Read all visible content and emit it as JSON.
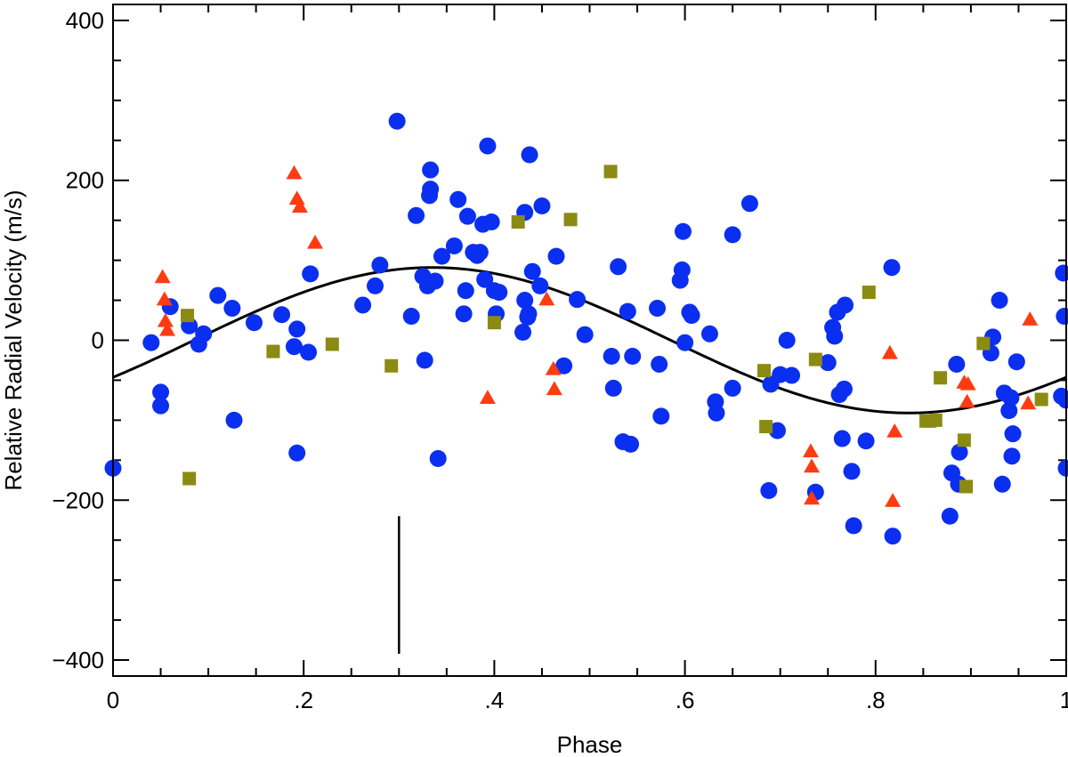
{
  "chart_data": {
    "type": "scatter",
    "title": "",
    "xlabel": "Phase",
    "ylabel": "Relative Radial Velocity (m/s)",
    "xlim": [
      0,
      1
    ],
    "ylim": [
      -420,
      420
    ],
    "x_tick_labels": [
      {
        "value": 0,
        "label": "0"
      },
      {
        "value": 0.2,
        "label": ".2"
      },
      {
        "value": 0.4,
        "label": ".4"
      },
      {
        "value": 0.6,
        "label": ".6"
      },
      {
        "value": 0.8,
        "label": ".8"
      },
      {
        "value": 1,
        "label": "1"
      }
    ],
    "y_tick_labels": [
      {
        "value": 400,
        "label": "400"
      },
      {
        "value": 200,
        "label": "200"
      },
      {
        "value": 0,
        "label": "0"
      },
      {
        "value": -200,
        "label": "−200"
      },
      {
        "value": -400,
        "label": "−400"
      }
    ],
    "grid": false,
    "legend": "none",
    "series": [
      {
        "marker": "circle",
        "color": "#0a2ff0",
        "points": [
          [
            0.0,
            -160
          ],
          [
            0.04,
            -3
          ],
          [
            0.05,
            -65
          ],
          [
            0.05,
            -82
          ],
          [
            0.06,
            42
          ],
          [
            0.08,
            18
          ],
          [
            0.09,
            -5
          ],
          [
            0.095,
            8
          ],
          [
            0.11,
            56
          ],
          [
            0.125,
            40
          ],
          [
            0.127,
            -100
          ],
          [
            0.148,
            22
          ],
          [
            0.177,
            32
          ],
          [
            0.19,
            -8
          ],
          [
            0.193,
            14
          ],
          [
            0.193,
            -141
          ],
          [
            0.205,
            -15
          ],
          [
            0.207,
            83
          ],
          [
            0.262,
            44
          ],
          [
            0.275,
            68
          ],
          [
            0.28,
            94
          ],
          [
            0.298,
            274
          ],
          [
            0.313,
            30
          ],
          [
            0.318,
            156
          ],
          [
            0.325,
            80
          ],
          [
            0.327,
            -25
          ],
          [
            0.33,
            68
          ],
          [
            0.332,
            181
          ],
          [
            0.333,
            189
          ],
          [
            0.333,
            213
          ],
          [
            0.338,
            74
          ],
          [
            0.341,
            -148
          ],
          [
            0.345,
            105
          ],
          [
            0.358,
            118
          ],
          [
            0.362,
            176
          ],
          [
            0.368,
            33
          ],
          [
            0.37,
            62
          ],
          [
            0.372,
            155
          ],
          [
            0.378,
            110
          ],
          [
            0.382,
            106
          ],
          [
            0.385,
            110
          ],
          [
            0.388,
            145
          ],
          [
            0.39,
            76
          ],
          [
            0.393,
            243
          ],
          [
            0.397,
            148
          ],
          [
            0.4,
            62
          ],
          [
            0.402,
            33
          ],
          [
            0.405,
            60
          ],
          [
            0.43,
            10
          ],
          [
            0.432,
            50
          ],
          [
            0.432,
            160
          ],
          [
            0.435,
            29
          ],
          [
            0.436,
            33
          ],
          [
            0.437,
            232
          ],
          [
            0.44,
            86
          ],
          [
            0.448,
            68
          ],
          [
            0.45,
            168
          ],
          [
            0.465,
            105
          ],
          [
            0.473,
            -32
          ],
          [
            0.487,
            51
          ],
          [
            0.495,
            7
          ],
          [
            0.523,
            -20
          ],
          [
            0.525,
            -60
          ],
          [
            0.53,
            92
          ],
          [
            0.535,
            -127
          ],
          [
            0.54,
            36
          ],
          [
            0.543,
            -130
          ],
          [
            0.545,
            -20
          ],
          [
            0.573,
            -30
          ],
          [
            0.575,
            -95
          ],
          [
            0.571,
            40
          ],
          [
            0.595,
            75
          ],
          [
            0.597,
            88
          ],
          [
            0.598,
            136
          ],
          [
            0.6,
            -3
          ],
          [
            0.605,
            35
          ],
          [
            0.607,
            31
          ],
          [
            0.626,
            8
          ],
          [
            0.632,
            -77
          ],
          [
            0.633,
            -91
          ],
          [
            0.65,
            -60
          ],
          [
            0.65,
            132
          ],
          [
            0.668,
            171
          ],
          [
            0.688,
            -188
          ],
          [
            0.69,
            -55
          ],
          [
            0.697,
            -113
          ],
          [
            0.7,
            -43
          ],
          [
            0.707,
            0
          ],
          [
            0.712,
            -44
          ],
          [
            0.737,
            -190
          ],
          [
            0.75,
            -28
          ],
          [
            0.755,
            16
          ],
          [
            0.757,
            5
          ],
          [
            0.76,
            35
          ],
          [
            0.762,
            -68
          ],
          [
            0.765,
            -123
          ],
          [
            0.767,
            -61
          ],
          [
            0.768,
            44
          ],
          [
            0.775,
            -164
          ],
          [
            0.777,
            -232
          ],
          [
            0.79,
            -126
          ],
          [
            0.817,
            91
          ],
          [
            0.818,
            -245
          ],
          [
            0.878,
            -220
          ],
          [
            0.88,
            -166
          ],
          [
            0.885,
            -30
          ],
          [
            0.887,
            -180
          ],
          [
            0.888,
            -140
          ],
          [
            0.921,
            -16
          ],
          [
            0.923,
            4
          ],
          [
            0.93,
            50
          ],
          [
            0.933,
            -180
          ],
          [
            0.935,
            -66
          ],
          [
            0.94,
            -88
          ],
          [
            0.942,
            -72
          ],
          [
            0.943,
            -145
          ],
          [
            0.944,
            -117
          ],
          [
            0.948,
            -27
          ],
          [
            0.995,
            -70
          ],
          [
            0.997,
            84
          ],
          [
            0.998,
            30
          ],
          [
            1.0,
            -160
          ],
          [
            1.0,
            -75
          ]
        ]
      },
      {
        "marker": "triangle",
        "color": "#ff3b12",
        "points": [
          [
            0.052,
            79
          ],
          [
            0.054,
            51
          ],
          [
            0.055,
            24
          ],
          [
            0.057,
            13
          ],
          [
            0.19,
            209
          ],
          [
            0.193,
            177
          ],
          [
            0.196,
            167
          ],
          [
            0.212,
            122
          ],
          [
            0.393,
            -72
          ],
          [
            0.455,
            51
          ],
          [
            0.462,
            -36
          ],
          [
            0.463,
            -61
          ],
          [
            0.732,
            -139
          ],
          [
            0.733,
            -158
          ],
          [
            0.733,
            -198
          ],
          [
            0.815,
            -16
          ],
          [
            0.818,
            -201
          ],
          [
            0.82,
            -114
          ],
          [
            0.893,
            -53
          ],
          [
            0.896,
            -77
          ],
          [
            0.897,
            -55
          ],
          [
            0.96,
            -79
          ],
          [
            0.962,
            26
          ]
        ]
      },
      {
        "marker": "square",
        "color": "#8b8a12",
        "points": [
          [
            0.078,
            31
          ],
          [
            0.08,
            -173
          ],
          [
            0.168,
            -14
          ],
          [
            0.23,
            -5
          ],
          [
            0.292,
            -32
          ],
          [
            0.4,
            22
          ],
          [
            0.425,
            148
          ],
          [
            0.48,
            151
          ],
          [
            0.522,
            211
          ],
          [
            0.683,
            -38
          ],
          [
            0.685,
            -108
          ],
          [
            0.737,
            -24
          ],
          [
            0.793,
            60
          ],
          [
            0.853,
            -101
          ],
          [
            0.857,
            -101
          ],
          [
            0.863,
            -100
          ],
          [
            0.868,
            -47
          ],
          [
            0.893,
            -125
          ],
          [
            0.895,
            -183
          ],
          [
            0.913,
            -4
          ],
          [
            0.974,
            -74
          ]
        ]
      },
      {
        "marker": "line",
        "color": "#000000",
        "model": {
          "amplitude": 91,
          "peak_phase": 0.335
        }
      }
    ],
    "annotations": [
      {
        "type": "vertical-marker",
        "x": 0.3,
        "y_range": [
          -220,
          -392
        ]
      }
    ]
  }
}
